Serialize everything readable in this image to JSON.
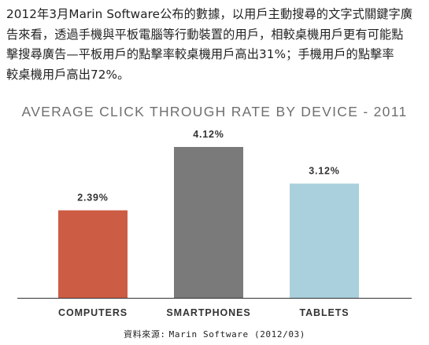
{
  "paragraph": {
    "lines": [
      "2012年3月Marin Software公布的數據，以用戶主動搜尋的文字式關鍵字廣",
      "告來看，透過手機與平板電腦等行動裝置的用戶，相較桌機用戶更有可能點",
      "擊搜尋廣告—平板用戶的點擊率較桌機用戶高出31%；手機用戶的點擊率",
      "較桌機用戶高出72%。"
    ]
  },
  "source": {
    "label": "資料來源:",
    "text": "Marin Software (2012/03)"
  },
  "chart_data": {
    "type": "bar",
    "title": "AVERAGE CLICK THROUGH RATE BY DEVICE - 2011",
    "categories": [
      "COMPUTERS",
      "SMARTPHONES",
      "TABLETS"
    ],
    "values": [
      2.39,
      4.12,
      3.12
    ],
    "value_labels": [
      "2.39%",
      "4.12%",
      "3.12%"
    ],
    "colors": [
      "#cc5c43",
      "#7a7a7a",
      "#a9d0dc"
    ],
    "ylim": [
      0,
      4.12
    ],
    "xlabel": "",
    "ylabel": "",
    "grid": false,
    "legend": "none"
  }
}
